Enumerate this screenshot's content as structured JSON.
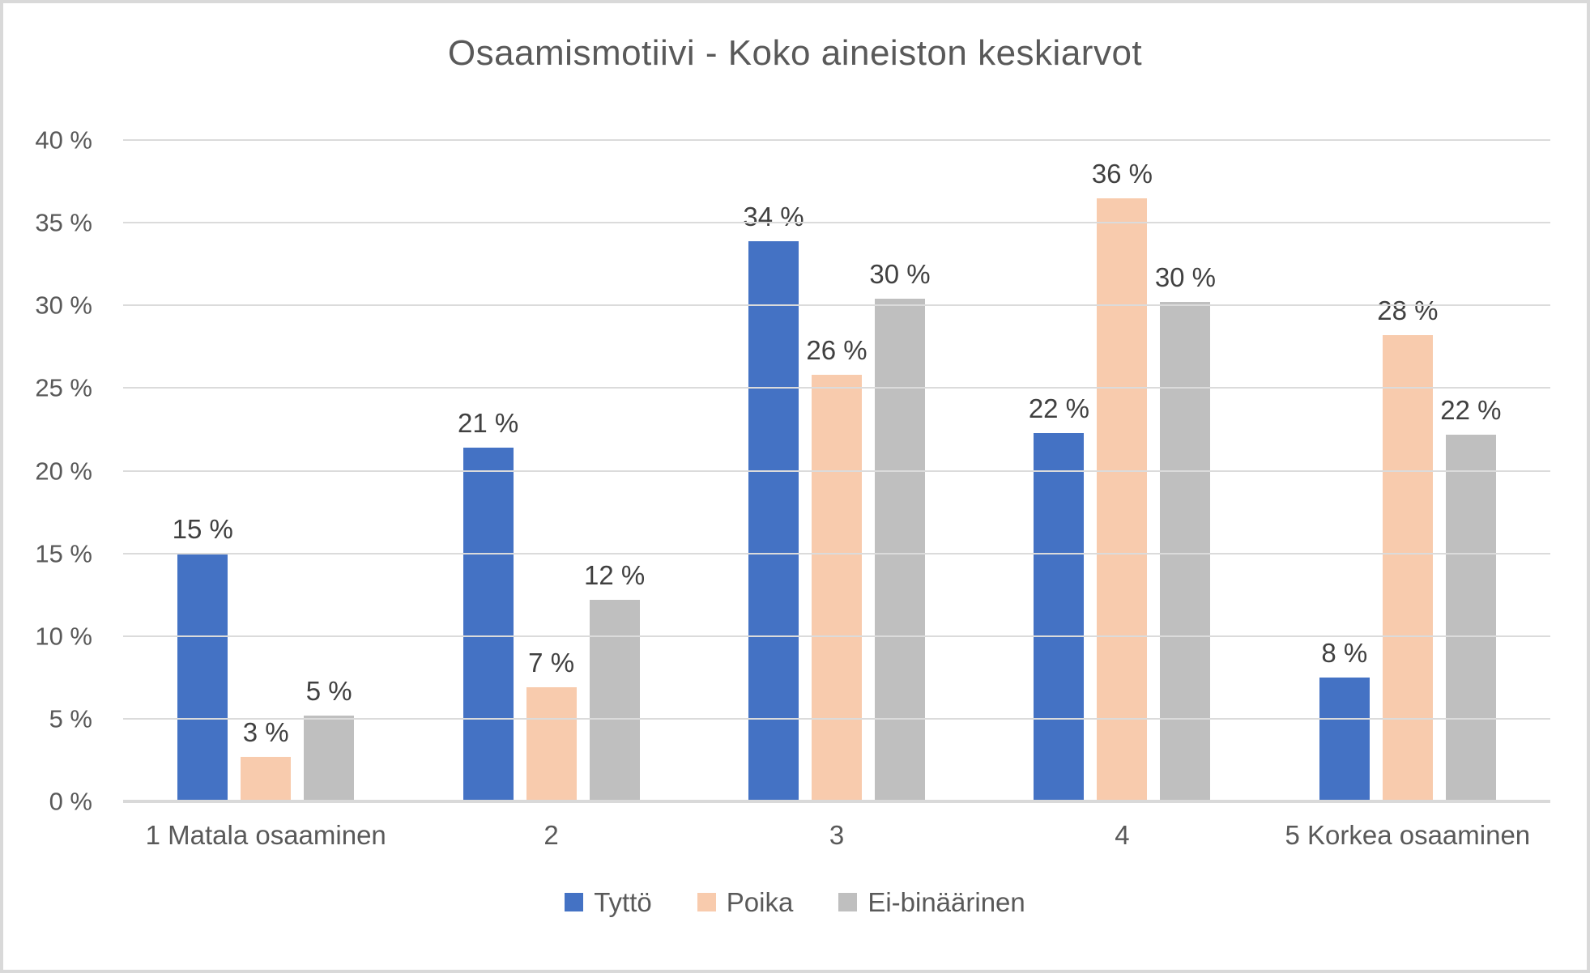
{
  "chart_data": {
    "type": "bar",
    "title": "Osaamismotiivi - Koko aineiston keskiarvot",
    "categories": [
      "1 Matala osaaminen",
      "2",
      "3",
      "4",
      "5 Korkea osaaminen"
    ],
    "series": [
      {
        "name": "Tyttö",
        "color": "#4472C4",
        "values": [
          15.0,
          21.4,
          33.9,
          22.3,
          7.5
        ],
        "labels": [
          "15 %",
          "21 %",
          "34 %",
          "22 %",
          "8 %"
        ]
      },
      {
        "name": "Poika",
        "color": "#F8CBAD",
        "values": [
          2.7,
          6.9,
          25.8,
          36.5,
          28.2
        ],
        "labels": [
          "3 %",
          "7 %",
          "26 %",
          "36 %",
          "28 %"
        ]
      },
      {
        "name": "Ei-binäärinen",
        "color": "#BFBFBF",
        "values": [
          5.2,
          12.2,
          30.4,
          30.2,
          22.2
        ],
        "labels": [
          "5 %",
          "12 %",
          "30 %",
          "30 %",
          "22 %"
        ]
      }
    ],
    "y_axis": {
      "min": 0,
      "max": 40,
      "tick_step": 5,
      "tick_labels": [
        "0 %",
        "5 %",
        "10 %",
        "15 %",
        "20 %",
        "25 %",
        "30 %",
        "35 %",
        "40 %"
      ]
    },
    "xlabel": "",
    "ylabel": "",
    "grid": true,
    "legend_position": "bottom"
  },
  "colors": {
    "background": "#FFFFFF",
    "border": "#D9D9D9",
    "grid": "#DBDBDB",
    "axis_line": "#D9D9D9",
    "title_text": "#595959",
    "axis_text": "#595959",
    "data_label_text": "#404040"
  }
}
